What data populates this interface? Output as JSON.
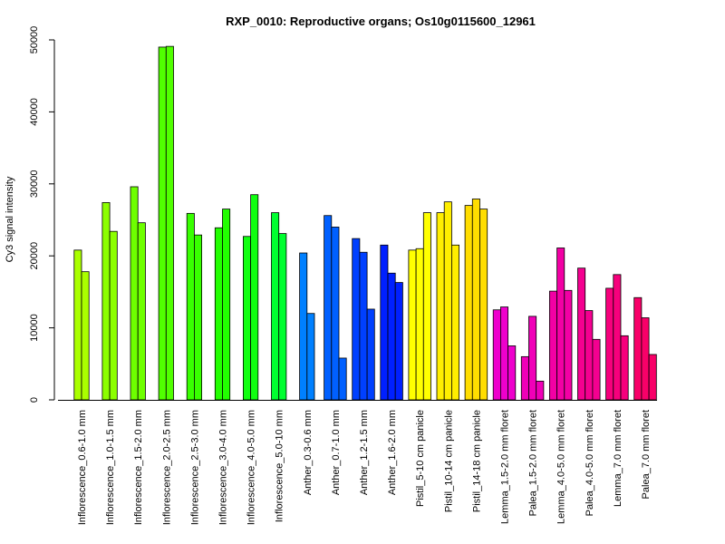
{
  "chart_data": {
    "type": "bar",
    "title": "RXP_0010: Reproductive organs; Os10g0115600_12961",
    "xlabel": "",
    "ylabel": "Cy3 signal intensity",
    "ylim": [
      0,
      50000
    ],
    "yticks": [
      0,
      10000,
      20000,
      30000,
      40000,
      50000
    ],
    "grid": false,
    "legend": "none",
    "groups": [
      {
        "label": "Inflorescence_0.6-1.0 mm",
        "color": "#aaff00",
        "values": [
          20800,
          17800
        ]
      },
      {
        "label": "Inflorescence_1.0-1.5 mm",
        "color": "#8cff00",
        "values": [
          27400,
          23400
        ]
      },
      {
        "label": "Inflorescence_1.5-2.0 mm",
        "color": "#6eff00",
        "values": [
          29600,
          24600
        ]
      },
      {
        "label": "Inflorescence_2.0-2.5 mm",
        "color": "#50ff00",
        "values": [
          49000,
          49100
        ]
      },
      {
        "label": "Inflorescence_2.5-3.0 mm",
        "color": "#38ff00",
        "values": [
          25900,
          22900
        ]
      },
      {
        "label": "Inflorescence_3.0-4.0 mm",
        "color": "#22ff00",
        "values": [
          23900,
          26500
        ]
      },
      {
        "label": "Inflorescence_4.0-5.0 mm",
        "color": "#10ff10",
        "values": [
          22700,
          28500
        ]
      },
      {
        "label": "Inflorescence_5.0-10 mm",
        "color": "#00ff30",
        "values": [
          26000,
          23100
        ]
      },
      {
        "label": "Anther_0.3-0.6 mm",
        "color": "#0080ff",
        "values": [
          20400,
          12000
        ]
      },
      {
        "label": "Anther_0.7-1.0 mm",
        "color": "#0060ff",
        "values": [
          25600,
          24000,
          5800
        ]
      },
      {
        "label": "Anther_1.2-1.5 mm",
        "color": "#0040ff",
        "values": [
          22400,
          20500,
          12600
        ]
      },
      {
        "label": "Anther_1.6-2.0 mm",
        "color": "#0020ff",
        "values": [
          21500,
          17600,
          16300
        ]
      },
      {
        "label": "Pistil_5-10 cm panicle",
        "color": "#ffff00",
        "values": [
          20800,
          21000,
          26000
        ]
      },
      {
        "label": "Pistil_10-14 cm panicle",
        "color": "#ffee00",
        "values": [
          26000,
          27500,
          21500
        ]
      },
      {
        "label": "Pistil_14-18 cm panicle",
        "color": "#ffdd00",
        "values": [
          27000,
          27900,
          26500
        ]
      },
      {
        "label": "Lemma_1.5-2.0 mm floret",
        "color": "#ee00cc",
        "values": [
          12500,
          12900,
          7500
        ]
      },
      {
        "label": "Palea_1.5-2.0 mm floret",
        "color": "#f000b8",
        "values": [
          6000,
          11600,
          2600
        ]
      },
      {
        "label": "Lemma_4.0-5.0 mm floret",
        "color": "#f200a4",
        "values": [
          15100,
          21100,
          15200
        ]
      },
      {
        "label": "Palea_4.0-5.0 mm floret",
        "color": "#f40090",
        "values": [
          18300,
          12400,
          8400
        ]
      },
      {
        "label": "Lemma_7.0 mm floret",
        "color": "#f6007c",
        "values": [
          15500,
          17400,
          8900
        ]
      },
      {
        "label": "Palea_7.0 mm floret",
        "color": "#f80068",
        "values": [
          14200,
          11400,
          6300
        ]
      }
    ]
  }
}
